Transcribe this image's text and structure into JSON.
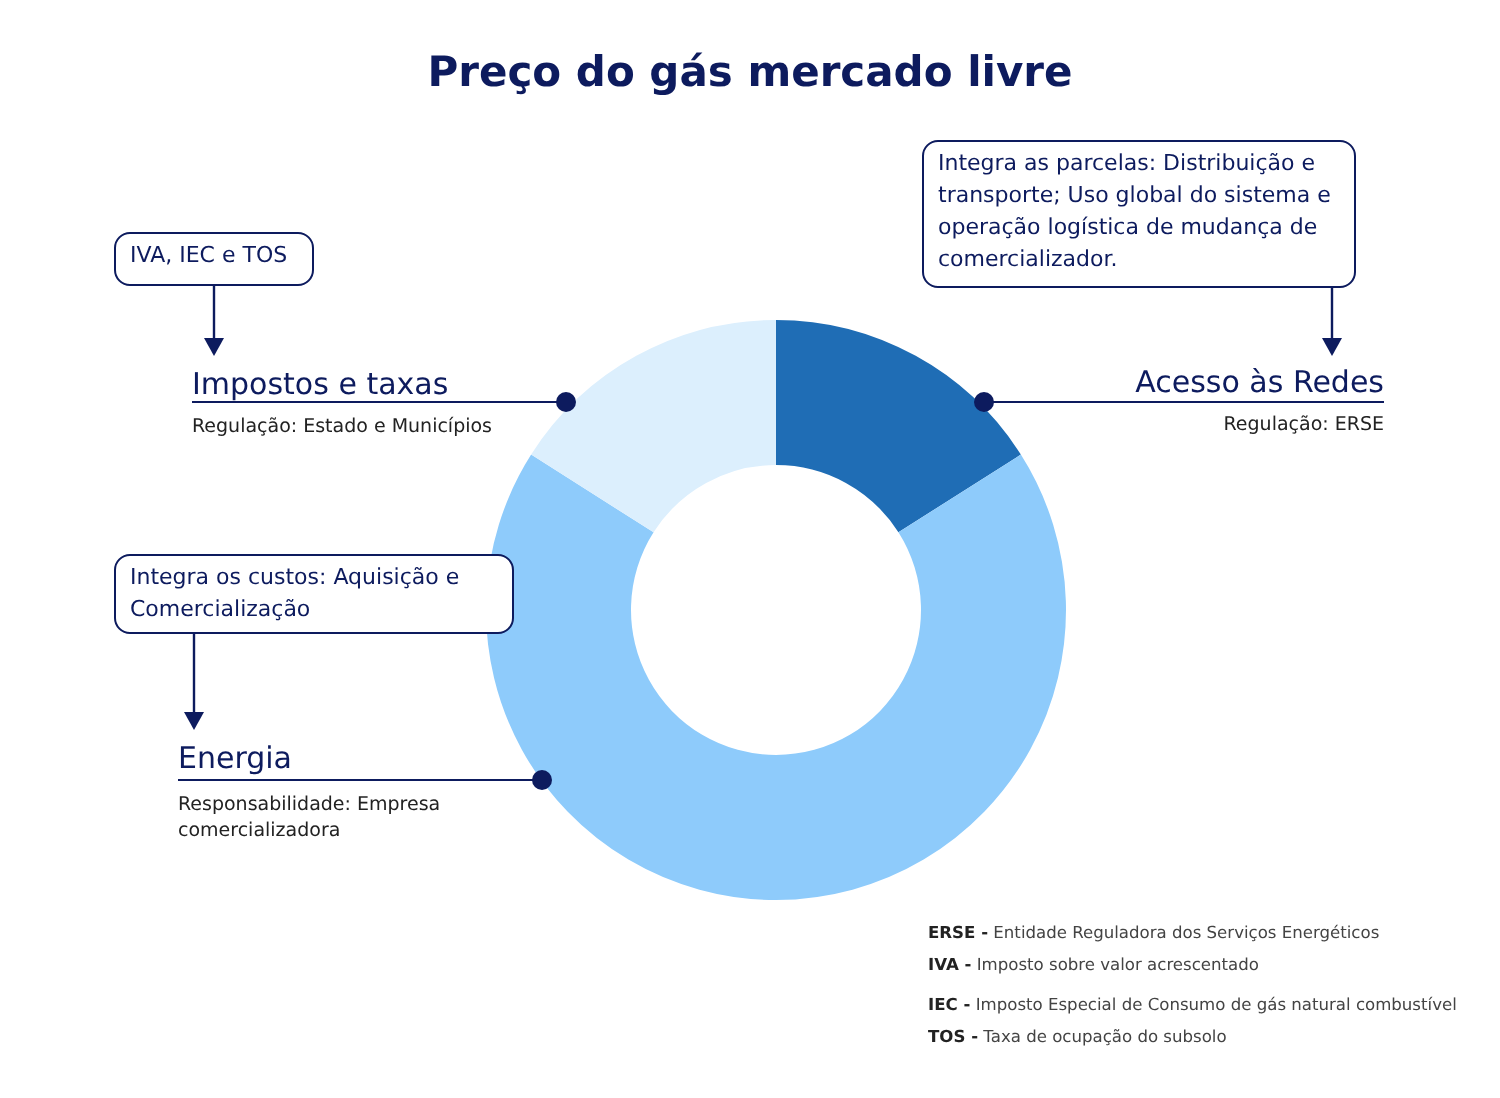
{
  "chart_data": {
    "type": "donut",
    "title": "Preço do gás mercado livre",
    "categories": [
      "Acesso às Redes",
      "Energia",
      "Impostos e taxas"
    ],
    "values": [
      16,
      68,
      16
    ],
    "colors": [
      "#1f6db5",
      "#8ecbfb",
      "#dceffd"
    ],
    "annotations": [
      "Integra as parcelas: Distribuição e transporte; Uso global do sistema e operação logística de mudança de comercializador.",
      "Integra os custos: Aquisição e Comercialização",
      "IVA, IEC e TOS",
      "Regulação: ERSE",
      "Responsabilidade: Empresa comercializadora",
      "Regulação: Estado e Municípios",
      "ERSE - Entidade Reguladora dos Serviços Energéticos",
      "IVA - Imposto sobre valor acrescentado",
      "IEC - Imposto Especial de Consumo de gás natural combustível",
      "TOS - Taxa de ocupação do subsolo"
    ]
  }
}
